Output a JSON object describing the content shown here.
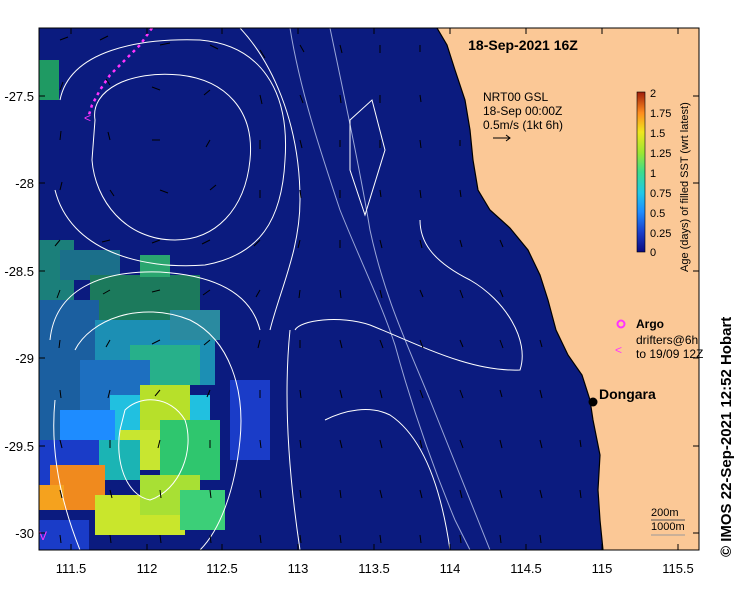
{
  "title": "18-Sep-2021 16Z",
  "product": {
    "line1": "NRT00 GSL",
    "line2": "18-Sep 00:00Z",
    "line3": "0.5m/s (1kt 6h)"
  },
  "colorbar": {
    "label": "Age (days) of filled SST (wrt latest)",
    "ticks": [
      "2",
      "1.75",
      "1.5",
      "1.25",
      "1",
      "0.75",
      "0.5",
      "0.25",
      "0"
    ],
    "range": [
      0,
      2
    ]
  },
  "legend": {
    "argo": "Argo",
    "drifters_line1": "drifters@6h",
    "drifters_line2": "to 19/09 12Z",
    "argo_color": "#ff33ff",
    "drifter_color": "#ff33ff"
  },
  "place": {
    "name": "Dongara"
  },
  "depth_legend": {
    "contour1": "200m",
    "contour2": "1000m"
  },
  "credit": "© IMOS 22-Sep-2021 12:52 Hobart",
  "axes": {
    "lat_labels": [
      "-27.5",
      "-28",
      "-28.5",
      "-29",
      "-29.5",
      "-30"
    ],
    "lon_labels": [
      "111.5",
      "112",
      "112.5",
      "113",
      "113.5",
      "114",
      "114.5",
      "115",
      "115.5"
    ]
  },
  "colors": {
    "ocean": "#0b1b7f",
    "land": "#fbc896",
    "contour": "#ffffff",
    "coast": "#000000"
  }
}
